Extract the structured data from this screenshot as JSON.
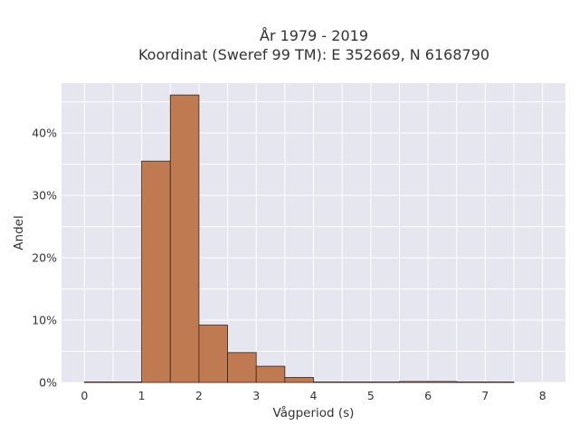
{
  "chart_data": {
    "type": "bar",
    "title_line1": "År 1979 - 2019",
    "title_line2": "Koordinat (Sweref 99 TM): E 352669, N 6168790",
    "xlabel": "Vågperiod (s)",
    "ylabel": "Andel",
    "xlim": [
      -0.4,
      8.4
    ],
    "ylim": [
      0,
      48
    ],
    "x_ticks": [
      0,
      1,
      2,
      3,
      4,
      5,
      6,
      7,
      8
    ],
    "x_tick_labels": [
      "0",
      "1",
      "2",
      "3",
      "4",
      "5",
      "6",
      "7",
      "8"
    ],
    "y_ticks": [
      0,
      10,
      20,
      30,
      40
    ],
    "y_tick_labels": [
      "0%",
      "10%",
      "20%",
      "30%",
      "40%"
    ],
    "grid": true,
    "bin_width": 0.5,
    "bins": [
      {
        "start": 0.0,
        "value": 0.05
      },
      {
        "start": 0.5,
        "value": 0.0
      },
      {
        "start": 1.0,
        "value": 35.5
      },
      {
        "start": 1.5,
        "value": 46.1
      },
      {
        "start": 2.0,
        "value": 9.2
      },
      {
        "start": 2.5,
        "value": 4.8
      },
      {
        "start": 3.0,
        "value": 2.6
      },
      {
        "start": 3.5,
        "value": 0.8
      },
      {
        "start": 4.0,
        "value": 0.05
      },
      {
        "start": 4.5,
        "value": 0.05
      },
      {
        "start": 5.0,
        "value": 0.05
      },
      {
        "start": 5.5,
        "value": 0.15
      },
      {
        "start": 6.0,
        "value": 0.15
      },
      {
        "start": 6.5,
        "value": 0.05
      },
      {
        "start": 7.0,
        "value": 0.05
      }
    ],
    "colors": {
      "bar_fill": "#c07a52",
      "bar_stroke": "#3a2416",
      "plot_bg": "#e5e6f0",
      "grid": "#ffffff"
    }
  }
}
